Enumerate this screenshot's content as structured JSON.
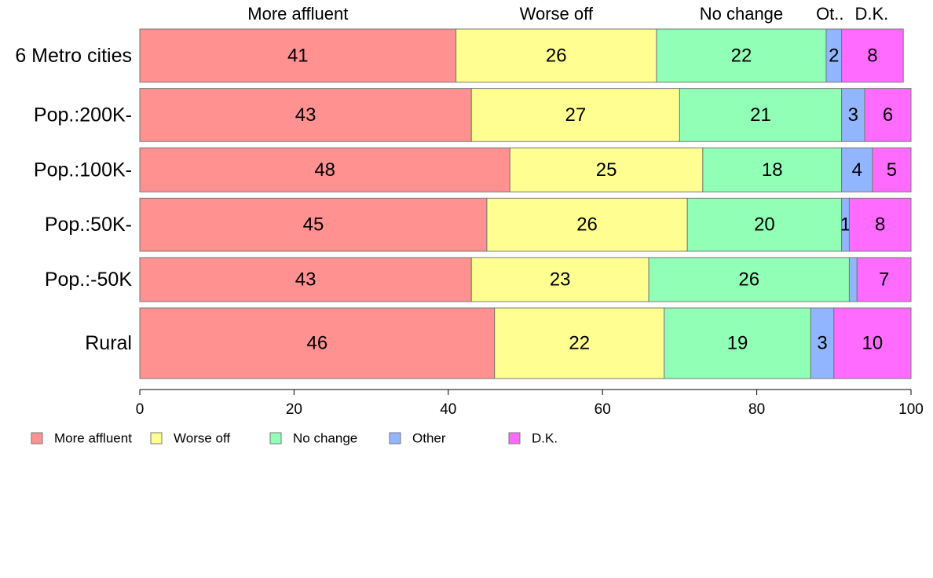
{
  "chart_data": {
    "type": "bar",
    "orientation": "horizontal",
    "stacked": true,
    "categories": [
      "6 Metro cities",
      "Pop.:200K-",
      "Pop.:100K-",
      "Pop.:50K-",
      "Pop.:-50K",
      "Rural"
    ],
    "series": [
      {
        "name": "More affluent",
        "top_label": "More affluent",
        "color": "#ff9191",
        "values": [
          41,
          43,
          48,
          45,
          43,
          46
        ]
      },
      {
        "name": "Worse off",
        "top_label": "Worse off",
        "color": "#ffff91",
        "values": [
          26,
          27,
          25,
          26,
          23,
          22
        ]
      },
      {
        "name": "No change",
        "top_label": "No change",
        "color": "#91ffb6",
        "values": [
          22,
          21,
          18,
          20,
          26,
          19
        ]
      },
      {
        "name": "Other",
        "top_label": "Ot..",
        "color": "#91b6ff",
        "values": [
          2,
          3,
          4,
          1,
          1,
          3
        ]
      },
      {
        "name": "D.K.",
        "top_label": "D.K.",
        "color": "#ff6bff",
        "values": [
          8,
          6,
          5,
          8,
          7,
          10
        ]
      }
    ],
    "data_labels": [
      [
        "41",
        "26",
        "22",
        "2",
        "8"
      ],
      [
        "43",
        "27",
        "21",
        "3",
        "6"
      ],
      [
        "48",
        "25",
        "18",
        "4",
        "5"
      ],
      [
        "45",
        "26",
        "20",
        "1",
        "8"
      ],
      [
        "43",
        "23",
        "26",
        "",
        "7"
      ],
      [
        "46",
        "22",
        "19",
        "3",
        "10"
      ]
    ],
    "row_weights": [
      1,
      1,
      0.83,
      1,
      0.83,
      1.33
    ],
    "xlim": [
      0,
      100
    ],
    "xticks": [
      0,
      20,
      40,
      60,
      80,
      100
    ],
    "xlabel": "",
    "ylabel": "",
    "title": "",
    "grid": false,
    "legend": "bottom-left",
    "legend_labels": [
      "More affluent",
      "Worse off",
      "No change",
      "Other",
      "D.K."
    ]
  }
}
